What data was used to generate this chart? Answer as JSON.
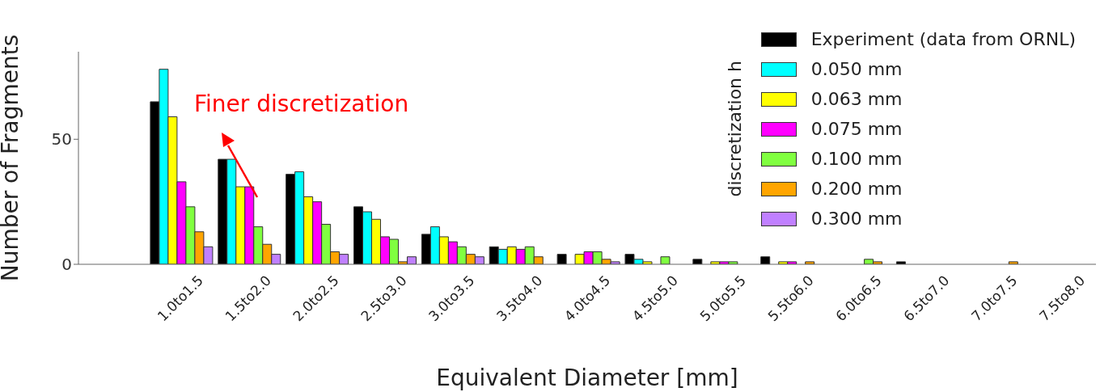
{
  "chart_data": {
    "type": "bar",
    "xlabel": "Equivalent Diameter [mm]",
    "ylabel": "Number of Fragments",
    "legend_title": "discretization h",
    "annotations": [
      "Finer discretization"
    ],
    "categories": [
      null,
      "1.0to1.5",
      "1.5to2.0",
      "2.0to2.5",
      "2.5to3.0",
      "3.0to3.5",
      "3.5to4.0",
      "4.0to4.5",
      "4.5to5.0",
      "5.0to5.5",
      "5.5to6.0",
      "6.0to6.5",
      "6.5to7.0",
      "7.0to7.5",
      "7.5to8.0"
    ],
    "series": [
      {
        "name": "Experiment (data from ORNL)",
        "color": "#000000",
        "values": [
          null,
          65,
          42,
          36,
          23,
          12,
          7,
          4,
          4,
          2,
          3,
          0,
          1,
          0,
          0
        ]
      },
      {
        "name": "0.050 mm",
        "color": "#00ffff",
        "values": [
          null,
          78,
          42,
          37,
          21,
          15,
          6,
          0,
          2,
          0,
          0,
          0,
          0,
          0,
          0
        ]
      },
      {
        "name": "0.063 mm",
        "color": "#ffff00",
        "values": [
          null,
          59,
          31,
          27,
          18,
          11,
          7,
          4,
          1,
          1,
          1,
          0,
          0,
          0,
          0
        ]
      },
      {
        "name": "0.075 mm",
        "color": "#ff00ff",
        "values": [
          null,
          33,
          31,
          25,
          11,
          9,
          6,
          5,
          0,
          1,
          1,
          0,
          0,
          0,
          0
        ]
      },
      {
        "name": "0.100 mm",
        "color": "#80ff40",
        "values": [
          null,
          23,
          15,
          16,
          10,
          7,
          7,
          5,
          3,
          1,
          0,
          2,
          0,
          0,
          0
        ]
      },
      {
        "name": "0.200 mm",
        "color": "#ffa500",
        "values": [
          null,
          13,
          8,
          5,
          1,
          4,
          3,
          2,
          0,
          0,
          1,
          1,
          0,
          1,
          0
        ]
      },
      {
        "name": "0.300 mm",
        "color": "#c080ff",
        "values": [
          null,
          7,
          4,
          4,
          3,
          3,
          0,
          1,
          0,
          0,
          0,
          0,
          0,
          0,
          0
        ]
      }
    ],
    "ylim": [
      0,
      85
    ],
    "yticks": [
      0,
      50
    ],
    "grid": false,
    "legend": "top right"
  }
}
